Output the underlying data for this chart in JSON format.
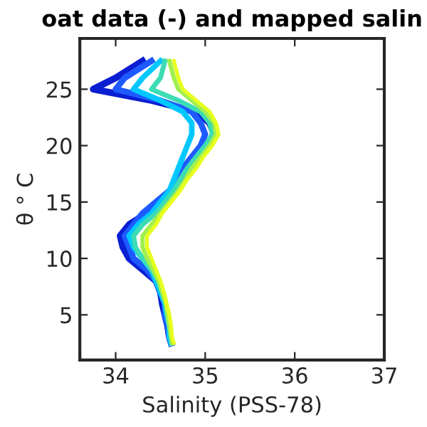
{
  "chart_data": {
    "type": "line",
    "title": "oat data (-) and mapped salin",
    "xlabel": "Salinity (PSS-78)",
    "ylabel": "θ ° C",
    "xlim": [
      33.6,
      37
    ],
    "xticks": [
      34,
      35,
      36,
      37
    ],
    "ylim": [
      1,
      29.5
    ],
    "yticks": [
      5,
      10,
      15,
      20,
      25
    ],
    "grid": false,
    "marker": "none",
    "line_style": "solid",
    "series": [
      {
        "color": "#0a1ed2",
        "x": [
          34.3,
          34.0,
          33.75,
          34.4,
          34.9,
          35.05,
          35.1,
          35.05,
          34.95,
          34.85,
          34.75,
          34.65,
          34.5,
          34.35,
          34.15,
          34.05,
          34.08,
          34.15,
          34.3,
          34.45,
          34.5,
          34.52,
          34.55,
          34.58,
          34.6,
          34.62
        ],
        "values": [
          27.5,
          26,
          25,
          24,
          23,
          22,
          21,
          20,
          19,
          18,
          17,
          16,
          15,
          14,
          13,
          12,
          11,
          10,
          9,
          8,
          7,
          6,
          5,
          4,
          3,
          2.5
        ]
      },
      {
        "color": "#1e5aff",
        "x": [
          34.4,
          34.1,
          34.0,
          34.5,
          34.85,
          34.95,
          35.0,
          34.95,
          34.85,
          34.75,
          34.7,
          34.6,
          34.45,
          34.3,
          34.2,
          34.1,
          34.15,
          34.2,
          34.35,
          34.45,
          34.5,
          34.55,
          34.55,
          34.58,
          34.6,
          34.62
        ],
        "values": [
          27.5,
          26,
          25,
          24,
          23,
          22,
          21,
          20,
          19,
          18,
          17,
          16,
          15,
          14,
          13,
          12,
          11,
          10,
          9,
          8,
          7,
          6,
          5,
          4,
          3,
          2.5
        ]
      },
      {
        "color": "#00c8ff",
        "x": [
          34.5,
          34.3,
          34.2,
          34.5,
          34.75,
          34.85,
          34.85,
          34.8,
          34.75,
          34.7,
          34.65,
          34.6,
          34.5,
          34.4,
          34.25,
          34.15,
          34.2,
          34.3,
          34.4,
          34.45,
          34.5,
          34.55,
          34.57,
          34.6,
          34.6,
          34.62
        ],
        "values": [
          27.5,
          26,
          25,
          24,
          23,
          22,
          21,
          20,
          19,
          18,
          17,
          16,
          15,
          14,
          13,
          12,
          11,
          10,
          9,
          8,
          7,
          6,
          5,
          4,
          3,
          2.5
        ]
      },
      {
        "color": "#3cdcb4",
        "x": [
          34.55,
          34.5,
          34.4,
          34.7,
          34.95,
          35.05,
          35.08,
          35.0,
          34.9,
          34.8,
          34.72,
          34.65,
          34.55,
          34.45,
          34.3,
          34.2,
          34.22,
          34.3,
          34.4,
          34.48,
          34.52,
          34.56,
          34.58,
          34.6,
          34.62,
          34.63
        ],
        "values": [
          27.5,
          26,
          25,
          24,
          23,
          22,
          21,
          20,
          19,
          18,
          17,
          16,
          15,
          14,
          13,
          12,
          11,
          10,
          9,
          8,
          7,
          6,
          5,
          4,
          3,
          2.5
        ]
      },
      {
        "color": "#a0f050",
        "x": [
          34.6,
          34.65,
          34.7,
          34.85,
          35.0,
          35.1,
          35.12,
          35.05,
          34.95,
          34.85,
          34.78,
          34.7,
          34.6,
          34.5,
          34.4,
          34.3,
          34.3,
          34.35,
          34.42,
          34.48,
          34.52,
          34.56,
          34.58,
          34.6,
          34.62,
          34.63
        ],
        "values": [
          27.5,
          26,
          25,
          24,
          23,
          22,
          21,
          20,
          19,
          18,
          17,
          16,
          15,
          14,
          13,
          12,
          11,
          10,
          9,
          8,
          7,
          6,
          5,
          4,
          3,
          2.5
        ]
      },
      {
        "color": "#e6ff1e",
        "x": [
          34.65,
          34.7,
          34.75,
          34.9,
          35.05,
          35.12,
          35.15,
          35.08,
          34.98,
          34.9,
          34.8,
          34.72,
          34.62,
          34.52,
          34.45,
          34.35,
          34.35,
          34.4,
          34.45,
          34.5,
          34.54,
          34.57,
          34.6,
          34.62,
          34.63,
          34.65
        ],
        "values": [
          27.5,
          26,
          25,
          24,
          23,
          22,
          21,
          20,
          19,
          18,
          17,
          16,
          15,
          14,
          13,
          12,
          11,
          10,
          9,
          8,
          7,
          6,
          5,
          4,
          3,
          2.5
        ]
      }
    ]
  }
}
